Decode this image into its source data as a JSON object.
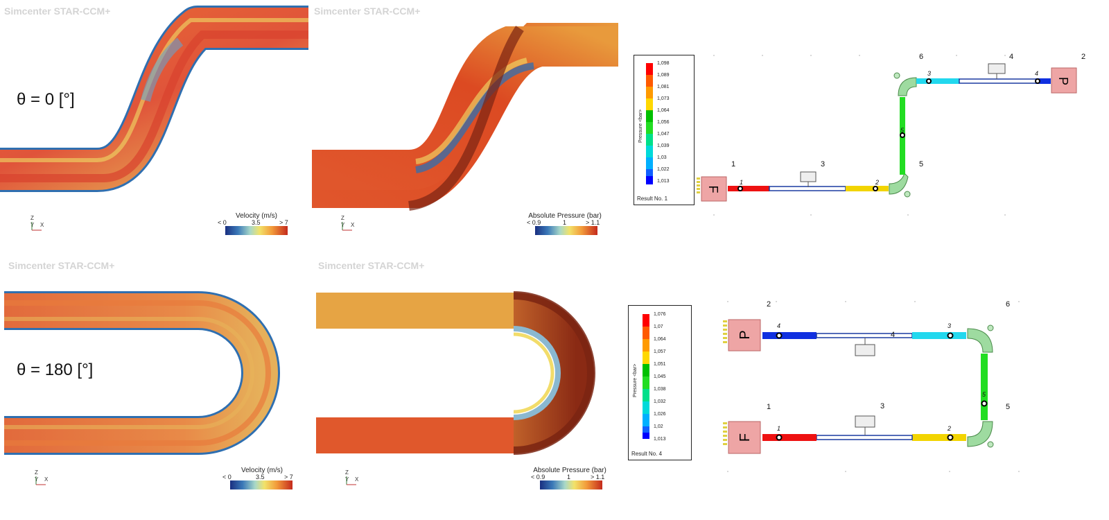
{
  "watermark": "Simcenter STAR-CCM+",
  "rows": [
    {
      "angle_label": "θ = 0 [°]",
      "velocity_bar": {
        "title": "Velocity (m/s)",
        "ticks": [
          "< 0",
          "3.5",
          "> 7"
        ]
      },
      "pressure_bar": {
        "title": "Absolute Pressure (bar)",
        "ticks": [
          "< 0.9",
          "1",
          "> 1.1"
        ]
      },
      "axes": {
        "z": "Z",
        "y": "Y",
        "x": "X"
      },
      "network": {
        "legend_axis": "Pressure <bar>",
        "legend_values": [
          "1,098",
          "1,089",
          "1,081",
          "1,073",
          "1,064",
          "1,056",
          "1,047",
          "1,039",
          "1,03",
          "1,022",
          "1,013"
        ],
        "legend_footer": "Result No. 1",
        "node_labels": [
          "1",
          "3",
          "2",
          "5",
          "6",
          "4",
          "2"
        ],
        "pipe_labels": [
          "1",
          "2",
          "5",
          "3",
          "4"
        ],
        "blocks": [
          "F",
          "P"
        ]
      }
    },
    {
      "angle_label": "θ = 180 [°]",
      "velocity_bar": {
        "title": "Velocity (m/s)",
        "ticks": [
          "< 0",
          "3.5",
          "> 7"
        ]
      },
      "pressure_bar": {
        "title": "Absolute Pressure (bar)",
        "ticks": [
          "< 0.9",
          "1",
          "> 1.1"
        ]
      },
      "axes": {
        "z": "Z",
        "y": "Y",
        "x": "X"
      },
      "network": {
        "legend_axis": "Pressure <bar>",
        "legend_values": [
          "1,076",
          "1,07",
          "1,064",
          "1,057",
          "1,051",
          "1,045",
          "1,038",
          "1,032",
          "1,026",
          "1,02",
          "1,013"
        ],
        "legend_footer": "Result No. 4",
        "node_labels": [
          "2",
          "6",
          "1",
          "3",
          "5",
          "4"
        ],
        "pipe_labels": [
          "4",
          "3",
          "5",
          "1",
          "2"
        ],
        "blocks": [
          "P",
          "F"
        ]
      }
    }
  ],
  "colors": {
    "legend_scale": [
      "#ff0000",
      "#ff5a00",
      "#ff9a00",
      "#ffd800",
      "#00c000",
      "#22dd22",
      "#00e08a",
      "#00dada",
      "#00b0ff",
      "#1060ff",
      "#0000ff"
    ],
    "cfd_hot": "#d94a25",
    "cfd_warm": "#e8a040",
    "cfd_cool": "#2f6fb0"
  }
}
